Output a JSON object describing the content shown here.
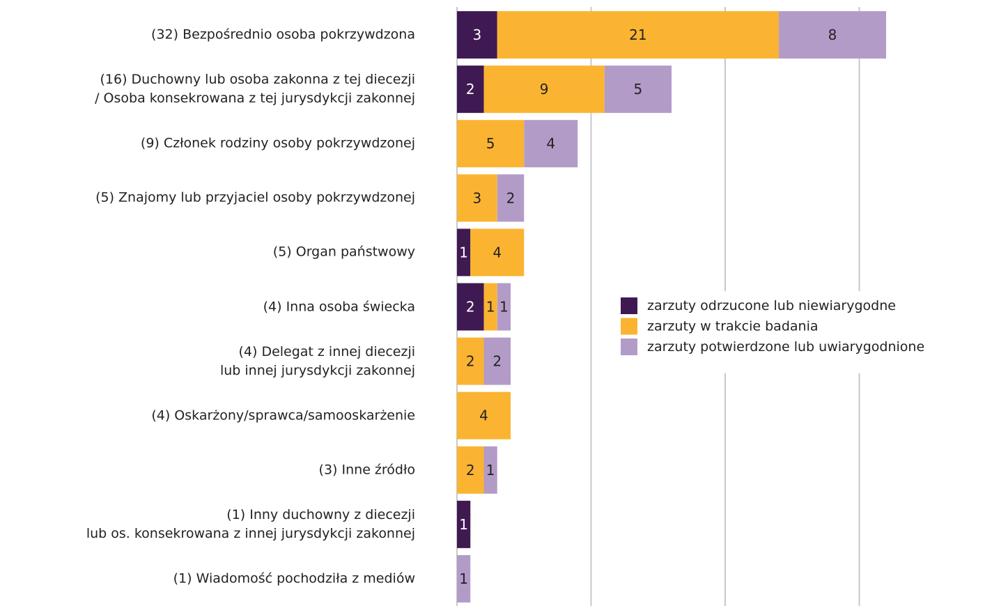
{
  "chart_data": {
    "type": "stacked-barh",
    "categories": [
      "(32) Bezpośrednio osoba pokrzywdzona",
      "(16) Duchowny lub osoba zakonna z tej diecezji\n/ Osoba konsekrowana z tej jurysdykcji zakonnej",
      "(9) Członek rodziny osoby pokrzywdzonej",
      "(5) Znajomy lub przyjaciel osoby pokrzywdzonej",
      "(5) Organ państwowy",
      "(4) Inna osoba świecka",
      "(4) Delegat z innej diecezji\nlub innej jurysdykcji zakonnej",
      "(4) Oskarżony/sprawca/samooskarżenie",
      "(3) Inne źródło",
      "(1) Inny duchowny z diecezji\nlub os. konsekrowana z innej jurysdykcji zakonnej",
      "(1) Wiadomość pochodziła z mediów"
    ],
    "series": [
      {
        "name": "zarzuty odrzucone lub niewiarygodne",
        "color": "#3f1a52",
        "values": [
          3,
          2,
          null,
          null,
          1,
          2,
          null,
          null,
          null,
          1,
          null
        ]
      },
      {
        "name": "zarzuty w trakcie badania",
        "color": "#fbb432",
        "values": [
          21,
          9,
          5,
          3,
          4,
          1,
          2,
          4,
          2,
          null,
          null
        ]
      },
      {
        "name": "zarzuty potwierdzone lub uwiarygodnione",
        "color": "#b39bc8",
        "values": [
          8,
          5,
          4,
          2,
          null,
          1,
          2,
          null,
          1,
          null,
          1
        ]
      }
    ],
    "xlim": [
      0,
      40
    ],
    "xticks": [
      0,
      10,
      20,
      30
    ],
    "grid": true
  }
}
